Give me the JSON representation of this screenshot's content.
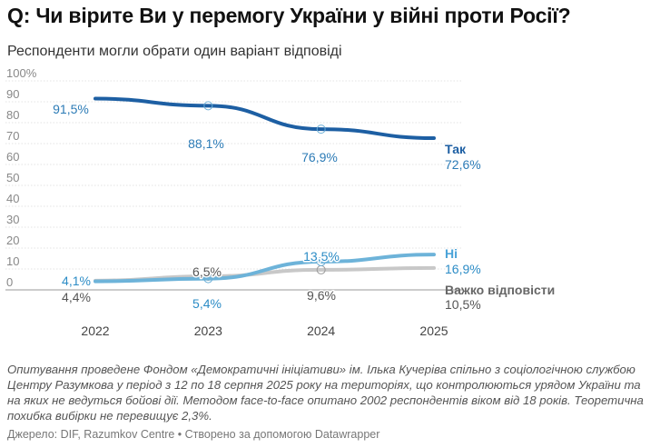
{
  "header": {
    "title": "Q: Чи вірите Ви у перемогу України у війні проти Росії?",
    "subtitle": "Респонденти могли обрати один варіант відповіді"
  },
  "footer": {
    "notes": "Опитування проведене Фондом «Демократичні ініціативи» ім. Ілька Кучеріва спільно з соціологічною службою Центру Разумкова у період з 12 по 18 серпня 2025 року на територіях, що контролюються урядом України та на яких не ведуться бойові дії. Методом face-to-face опитано 2002 респондентів віком від 18 років. Теоретична похибка вибірки не перевищує 2,3%.",
    "source": "Джерело: DIF, Razumkov Centre • Створено за допомогою Datawrapper"
  },
  "chart_data": {
    "type": "line",
    "title": "Q: Чи вірите Ви у перемогу України у війні проти Росії?",
    "subtitle": "Респонденти могли обрати один варіант відповіді",
    "x": [
      2022,
      2023,
      2024,
      2025
    ],
    "x_tick_labels": [
      "2022",
      "2023",
      "2024",
      "2025"
    ],
    "ylim": [
      0,
      100
    ],
    "y_ticks": [
      0,
      10,
      20,
      30,
      40,
      50,
      60,
      70,
      80,
      90,
      100
    ],
    "y_tick_labels": [
      "0",
      "10",
      "20",
      "30",
      "40",
      "50",
      "60",
      "70",
      "80",
      "90",
      "100%"
    ],
    "grid": true,
    "series": [
      {
        "name": "Так",
        "color": "#1d5fa3",
        "values": [
          91.5,
          88.1,
          76.9,
          72.6
        ],
        "value_labels": [
          "91,5%",
          "88,1%",
          "76,9%",
          "72,6%"
        ],
        "label_color": "#2c7bb6"
      },
      {
        "name": "Ні",
        "color": "#6db3d9",
        "values": [
          4.1,
          5.4,
          13.5,
          16.9
        ],
        "value_labels": [
          "4,1%",
          "5,4%",
          "13,5%",
          "16,9%"
        ],
        "label_color": "#2c8cc6"
      },
      {
        "name": "Важко відповісти",
        "color": "#c8c8c8",
        "values": [
          4.4,
          6.5,
          9.6,
          10.5
        ],
        "value_labels": [
          "4,4%",
          "6,5%",
          "9,6%",
          "10,5%"
        ],
        "label_color": "#555555"
      }
    ]
  }
}
